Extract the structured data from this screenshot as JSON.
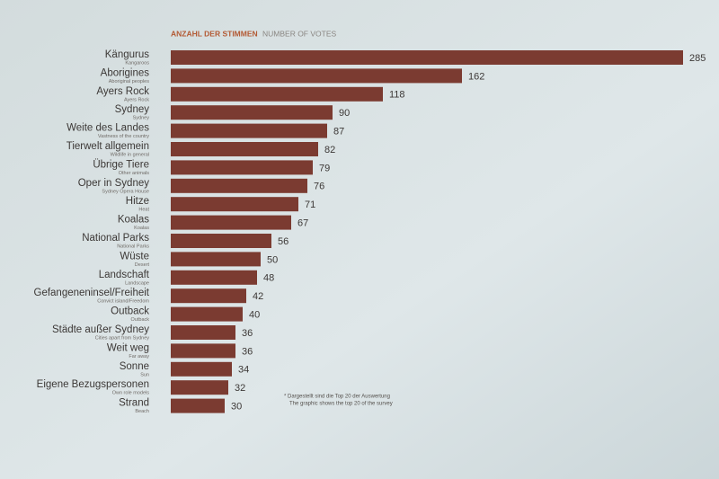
{
  "chart_data": {
    "type": "bar",
    "orientation": "horizontal",
    "title": "ANZAHL DER STIMMEN",
    "subtitle": "NUMBER OF VOTES",
    "categories": [
      "Kängurus",
      "Aborigines",
      "Ayers Rock",
      "Sydney",
      "Weite des Landes",
      "Tierwelt allgemein",
      "Übrige Tiere",
      "Oper in Sydney",
      "Hitze",
      "Koalas",
      "National Parks",
      "Wüste",
      "Landschaft",
      "Gefangeneninsel/Freiheit",
      "Outback",
      "Städte außer Sydney",
      "Weit weg",
      "Sonne",
      "Eigene Bezugspersonen",
      "Strand"
    ],
    "category_translations": [
      "Kangaroos",
      "Aboriginal peoples",
      "Ayers Rock",
      "Sydney",
      "Vastness of the country",
      "Wildlife in general",
      "Other animals",
      "Sydney Opera House",
      "Heat",
      "Koalas",
      "National Parks",
      "Desert",
      "Landscape",
      "Convict island/Freedom",
      "Outback",
      "Cities apart from Sydney",
      "Far away",
      "Sun",
      "Own role models",
      "Beach"
    ],
    "values": [
      285,
      162,
      118,
      90,
      87,
      82,
      79,
      76,
      71,
      67,
      56,
      50,
      48,
      42,
      40,
      36,
      36,
      34,
      32,
      30
    ],
    "color": "#7b3b31",
    "notes": [
      "* Dargestellt sind die Top 20 der Auswertung",
      "The graphic shows the top 20 of the survey"
    ]
  }
}
